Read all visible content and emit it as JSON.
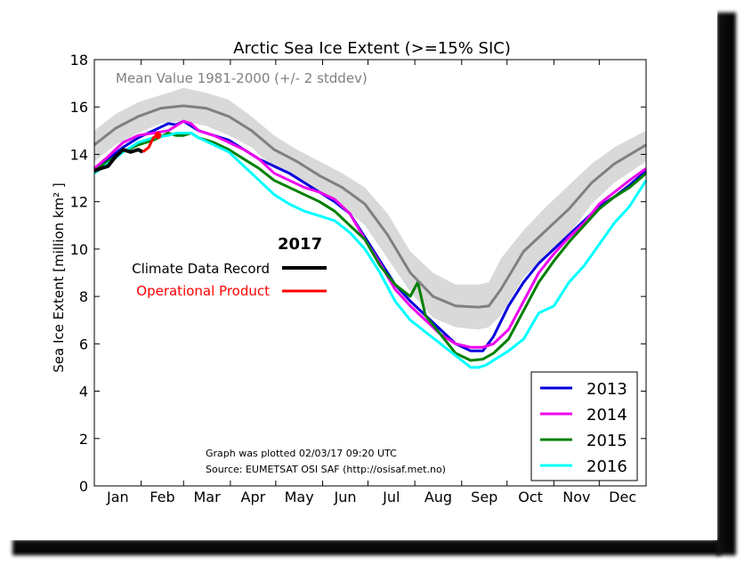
{
  "chart_data": {
    "type": "line",
    "title": "Arctic Sea Ice Extent (>=15% SIC)",
    "ylabel": "Sea Ice Extent [million km² ]",
    "ylim": [
      0,
      18
    ],
    "yticks": [
      "0",
      "2",
      "4",
      "6",
      "8",
      "10",
      "12",
      "14",
      "16",
      "18"
    ],
    "x_range_days": [
      1,
      366
    ],
    "months": [
      "Jan",
      "Feb",
      "Mar",
      "Apr",
      "May",
      "Jun",
      "Jul",
      "Aug",
      "Sep",
      "Oct",
      "Nov",
      "Dec"
    ],
    "mean_label": "Mean Value 1981-2000 (+/- 2 stddev)",
    "mean": {
      "x": [
        1,
        15,
        30,
        45,
        60,
        75,
        90,
        105,
        120,
        135,
        150,
        165,
        180,
        195,
        210,
        225,
        240,
        255,
        262,
        270,
        285,
        300,
        315,
        330,
        345,
        366
      ],
      "y": [
        14.4,
        15.1,
        15.6,
        15.95,
        16.05,
        15.95,
        15.6,
        15.0,
        14.2,
        13.7,
        13.1,
        12.6,
        11.9,
        10.6,
        9.0,
        8.0,
        7.6,
        7.55,
        7.6,
        8.3,
        9.9,
        10.8,
        11.7,
        12.8,
        13.6,
        14.4
      ],
      "upper": [
        15.0,
        15.7,
        16.2,
        16.5,
        16.8,
        16.6,
        16.3,
        15.6,
        14.8,
        14.2,
        13.7,
        13.2,
        12.6,
        11.5,
        9.9,
        9.0,
        8.5,
        8.5,
        8.6,
        9.6,
        10.8,
        11.8,
        12.7,
        13.6,
        14.3,
        15.0
      ],
      "lower": [
        13.7,
        14.4,
        14.9,
        15.3,
        15.4,
        15.2,
        14.8,
        14.3,
        13.4,
        13.0,
        12.4,
        11.8,
        11.0,
        9.6,
        8.2,
        7.1,
        6.7,
        6.6,
        6.7,
        7.2,
        8.8,
        9.8,
        10.6,
        11.9,
        12.8,
        13.7
      ]
    },
    "year_label": "2017",
    "key": [
      {
        "name": "Climate Data Record",
        "color": "#000000"
      },
      {
        "name": "Operational Product",
        "color": "#ff0000"
      }
    ],
    "series_2017": [
      {
        "name": "Climate Data Record",
        "x": [
          1,
          5,
          10,
          15,
          20,
          25,
          30,
          33
        ],
        "y": [
          13.3,
          13.4,
          13.5,
          13.9,
          14.2,
          14.1,
          14.2,
          14.1
        ]
      },
      {
        "name": "Operational Product",
        "x": [
          33,
          37,
          40,
          43
        ],
        "y": [
          14.1,
          14.3,
          14.7,
          14.8
        ]
      }
    ],
    "series": [
      {
        "name": "2013",
        "color": "#0000dd",
        "x": [
          1,
          10,
          20,
          30,
          40,
          50,
          55,
          60,
          65,
          70,
          80,
          90,
          100,
          110,
          120,
          130,
          140,
          150,
          160,
          170,
          180,
          190,
          200,
          210,
          220,
          230,
          240,
          250,
          258,
          265,
          275,
          285,
          295,
          305,
          315,
          325,
          335,
          345,
          355,
          366
        ],
        "y": [
          13.4,
          13.8,
          14.3,
          14.7,
          15.0,
          15.3,
          15.25,
          15.4,
          15.2,
          15.0,
          14.8,
          14.6,
          14.2,
          13.8,
          13.5,
          13.2,
          12.8,
          12.4,
          12.0,
          11.5,
          10.5,
          9.5,
          8.5,
          7.8,
          7.2,
          6.6,
          6.0,
          5.7,
          5.7,
          6.3,
          7.6,
          8.6,
          9.4,
          10.0,
          10.6,
          11.2,
          11.8,
          12.2,
          12.7,
          13.3
        ]
      },
      {
        "name": "2014",
        "color": "#ee00ee",
        "x": [
          1,
          10,
          20,
          30,
          40,
          50,
          55,
          60,
          65,
          70,
          80,
          90,
          100,
          110,
          120,
          130,
          140,
          150,
          160,
          170,
          180,
          190,
          200,
          210,
          220,
          230,
          240,
          250,
          258,
          265,
          275,
          285,
          295,
          305,
          315,
          325,
          335,
          345,
          355,
          366
        ],
        "y": [
          13.4,
          13.9,
          14.5,
          14.8,
          14.9,
          15.0,
          15.2,
          15.4,
          15.3,
          15.0,
          14.8,
          14.5,
          14.2,
          13.8,
          13.2,
          12.9,
          12.6,
          12.4,
          12.1,
          11.5,
          10.4,
          9.4,
          8.3,
          7.6,
          7.0,
          6.4,
          6.0,
          5.85,
          5.85,
          6.0,
          6.6,
          7.8,
          9.0,
          9.8,
          10.5,
          11.1,
          11.9,
          12.4,
          12.9,
          13.4
        ]
      },
      {
        "name": "2015",
        "color": "#008000",
        "x": [
          1,
          10,
          20,
          30,
          40,
          50,
          55,
          60,
          65,
          70,
          80,
          90,
          100,
          110,
          120,
          130,
          140,
          150,
          160,
          170,
          180,
          190,
          200,
          210,
          215,
          220,
          230,
          240,
          250,
          258,
          265,
          275,
          285,
          295,
          305,
          315,
          325,
          335,
          345,
          355,
          366
        ],
        "y": [
          13.3,
          13.7,
          14.1,
          14.4,
          14.6,
          14.9,
          14.8,
          14.8,
          14.9,
          14.7,
          14.5,
          14.2,
          13.8,
          13.4,
          12.9,
          12.6,
          12.3,
          12.0,
          11.6,
          11.0,
          10.4,
          9.3,
          8.5,
          8.0,
          8.6,
          7.2,
          6.4,
          5.6,
          5.3,
          5.35,
          5.6,
          6.2,
          7.4,
          8.6,
          9.5,
          10.3,
          11.0,
          11.7,
          12.2,
          12.6,
          13.2
        ]
      },
      {
        "name": "2016",
        "color": "#00ffff",
        "x": [
          1,
          10,
          20,
          30,
          40,
          50,
          55,
          60,
          65,
          70,
          80,
          90,
          100,
          110,
          120,
          130,
          140,
          150,
          160,
          170,
          180,
          190,
          200,
          210,
          220,
          230,
          240,
          250,
          255,
          260,
          265,
          275,
          285,
          295,
          305,
          315,
          325,
          335,
          345,
          355,
          366
        ],
        "y": [
          13.2,
          13.6,
          14.1,
          14.5,
          14.7,
          14.8,
          14.9,
          14.9,
          14.9,
          14.7,
          14.4,
          14.1,
          13.5,
          12.9,
          12.3,
          11.9,
          11.6,
          11.4,
          11.2,
          10.7,
          10.0,
          9.0,
          7.8,
          7.0,
          6.5,
          6.0,
          5.5,
          5.0,
          5.0,
          5.1,
          5.3,
          5.7,
          6.2,
          7.3,
          7.6,
          8.6,
          9.3,
          10.2,
          11.1,
          11.8,
          12.9
        ]
      }
    ],
    "notes": [
      "Graph was plotted 02/03/17 09:20 UTC",
      "Source: EUMETSAT OSI SAF (http://osisaf.met.no)"
    ]
  }
}
